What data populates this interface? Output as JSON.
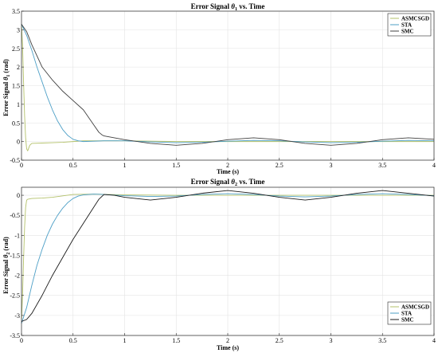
{
  "chart_data": [
    {
      "type": "line",
      "title": "Error Signal θ1 vs. Time",
      "title_parts": {
        "prefix": "Error Signal ",
        "symbol": "θ",
        "sub": "1",
        "suffix": " vs. Time"
      },
      "xlabel": "Time (s)",
      "ylabel_parts": {
        "prefix": "Error Signal ",
        "symbol": "θ",
        "sub": "1",
        "suffix": " (rad)"
      },
      "xlim": [
        0,
        4
      ],
      "ylim": [
        -0.5,
        3.5
      ],
      "xticks": [
        0,
        0.5,
        1,
        1.5,
        2,
        2.5,
        3,
        3.5,
        4
      ],
      "xtick_labels": [
        "0",
        "0.5",
        "1",
        "1.5",
        "2",
        "2.5",
        "3",
        "3.5",
        "4"
      ],
      "yticks": [
        -0.5,
        0,
        0.5,
        1,
        1.5,
        2,
        2.5,
        3,
        3.5
      ],
      "ytick_labels": [
        "-0.5",
        "0",
        "0.5",
        "1",
        "1.5",
        "2",
        "2.5",
        "3",
        "3.5"
      ],
      "grid": true,
      "legend_position": "top-right",
      "series": [
        {
          "name": "ASMCSGD",
          "color": "#b3c16a",
          "x": [
            0,
            0.01,
            0.02,
            0.03,
            0.04,
            0.05,
            0.06,
            0.08,
            0.1,
            0.2,
            0.3,
            0.4,
            0.5,
            0.6,
            0.8,
            1,
            1.5,
            2,
            2.5,
            3,
            3.5,
            4
          ],
          "y": [
            3.1,
            2.6,
            1.6,
            0.7,
            0.1,
            -0.2,
            -0.25,
            -0.1,
            -0.05,
            -0.04,
            -0.03,
            -0.02,
            0,
            0.02,
            0.02,
            0.02,
            0,
            0,
            0,
            0,
            0,
            0
          ]
        },
        {
          "name": "STA",
          "color": "#4d9fc6",
          "x": [
            0,
            0.05,
            0.1,
            0.15,
            0.2,
            0.25,
            0.3,
            0.35,
            0.4,
            0.45,
            0.5,
            0.55,
            0.6,
            0.7,
            0.8,
            1,
            1.25,
            1.5,
            1.75,
            2,
            2.25,
            2.5,
            2.75,
            3,
            3.25,
            3.5,
            3.75,
            4
          ],
          "y": [
            3.15,
            2.85,
            2.45,
            2.0,
            1.6,
            1.2,
            0.85,
            0.55,
            0.32,
            0.16,
            0.06,
            0.02,
            0.0,
            0.01,
            0.02,
            0.02,
            -0.01,
            -0.03,
            -0.02,
            0.01,
            0.03,
            0.02,
            -0.01,
            -0.03,
            -0.02,
            0.01,
            0.03,
            0.02
          ]
        },
        {
          "name": "SMC",
          "color": "#404040",
          "x": [
            0,
            0.05,
            0.1,
            0.15,
            0.2,
            0.3,
            0.4,
            0.5,
            0.6,
            0.65,
            0.7,
            0.75,
            0.78,
            0.8,
            0.9,
            1,
            1.25,
            1.5,
            1.75,
            2,
            2.25,
            2.5,
            2.75,
            3,
            3.25,
            3.5,
            3.75,
            4
          ],
          "y": [
            3.15,
            2.95,
            2.6,
            2.3,
            2.0,
            1.65,
            1.35,
            1.1,
            0.85,
            0.65,
            0.45,
            0.25,
            0.18,
            0.15,
            0.1,
            0.05,
            -0.05,
            -0.1,
            -0.05,
            0.05,
            0.1,
            0.05,
            -0.05,
            -0.1,
            -0.05,
            0.05,
            0.1,
            0.06
          ]
        }
      ]
    },
    {
      "type": "line",
      "title": "Error Signal θ2 vs. Time",
      "title_parts": {
        "prefix": "Error Signal ",
        "symbol": "θ",
        "sub": "2",
        "suffix": " vs. Time"
      },
      "xlabel": "Time (s)",
      "ylabel_parts": {
        "prefix": "Error Signal ",
        "symbol": "θ",
        "sub": "2",
        "suffix": " (rad)"
      },
      "xlim": [
        0,
        4
      ],
      "ylim": [
        -3.5,
        0.2
      ],
      "xticks": [
        0,
        0.5,
        1,
        1.5,
        2,
        2.5,
        3,
        3.5,
        4
      ],
      "xtick_labels": [
        "0",
        "0.5",
        "1",
        "1.5",
        "2",
        "2.5",
        "3",
        "3.5",
        "4"
      ],
      "yticks": [
        -3.5,
        -3,
        -2.5,
        -2,
        -1.5,
        -1,
        -0.5,
        0
      ],
      "ytick_labels": [
        "-3.5",
        "-3",
        "-2.5",
        "-2",
        "-1.5",
        "-1",
        "-0.5",
        "0"
      ],
      "grid": true,
      "legend_position": "bottom-right",
      "series": [
        {
          "name": "ASMCSGD",
          "color": "#b3c16a",
          "x": [
            0,
            0.01,
            0.02,
            0.03,
            0.04,
            0.05,
            0.06,
            0.08,
            0.1,
            0.2,
            0.3,
            0.5,
            0.7,
            1,
            1.5,
            2,
            2.5,
            3,
            3.5,
            4
          ],
          "y": [
            -3.1,
            -2.5,
            -1.6,
            -0.8,
            -0.3,
            -0.12,
            -0.1,
            -0.09,
            -0.08,
            -0.07,
            -0.05,
            0.02,
            0.03,
            0.01,
            0,
            0,
            0,
            0,
            0,
            0
          ]
        },
        {
          "name": "STA",
          "color": "#4d9fc6",
          "x": [
            0,
            0.05,
            0.1,
            0.15,
            0.2,
            0.25,
            0.3,
            0.35,
            0.4,
            0.45,
            0.5,
            0.55,
            0.6,
            0.7,
            0.8,
            1,
            1.25,
            1.5,
            1.75,
            2,
            2.25,
            2.5,
            2.75,
            3,
            3.25,
            3.5,
            3.75,
            4
          ],
          "y": [
            -3.2,
            -2.8,
            -2.25,
            -1.75,
            -1.35,
            -1.0,
            -0.72,
            -0.5,
            -0.32,
            -0.18,
            -0.08,
            -0.02,
            0.01,
            0.03,
            0.02,
            -0.01,
            -0.03,
            -0.02,
            0.02,
            0.04,
            0.02,
            -0.02,
            -0.04,
            -0.02,
            0.02,
            0.04,
            0.02,
            -0.01
          ]
        },
        {
          "name": "SMC",
          "color": "#1a1a1a",
          "x": [
            0,
            0.05,
            0.1,
            0.2,
            0.3,
            0.4,
            0.5,
            0.6,
            0.7,
            0.75,
            0.8,
            0.9,
            1,
            1.25,
            1.5,
            1.75,
            2,
            2.25,
            2.5,
            2.75,
            3,
            3.25,
            3.5,
            3.75,
            4
          ],
          "y": [
            -3.15,
            -3.1,
            -2.95,
            -2.5,
            -2.0,
            -1.55,
            -1.1,
            -0.7,
            -0.3,
            -0.1,
            0.02,
            0.0,
            -0.05,
            -0.12,
            -0.05,
            0.05,
            0.12,
            0.05,
            -0.05,
            -0.12,
            -0.05,
            0.05,
            0.12,
            0.05,
            -0.02
          ]
        }
      ]
    }
  ]
}
